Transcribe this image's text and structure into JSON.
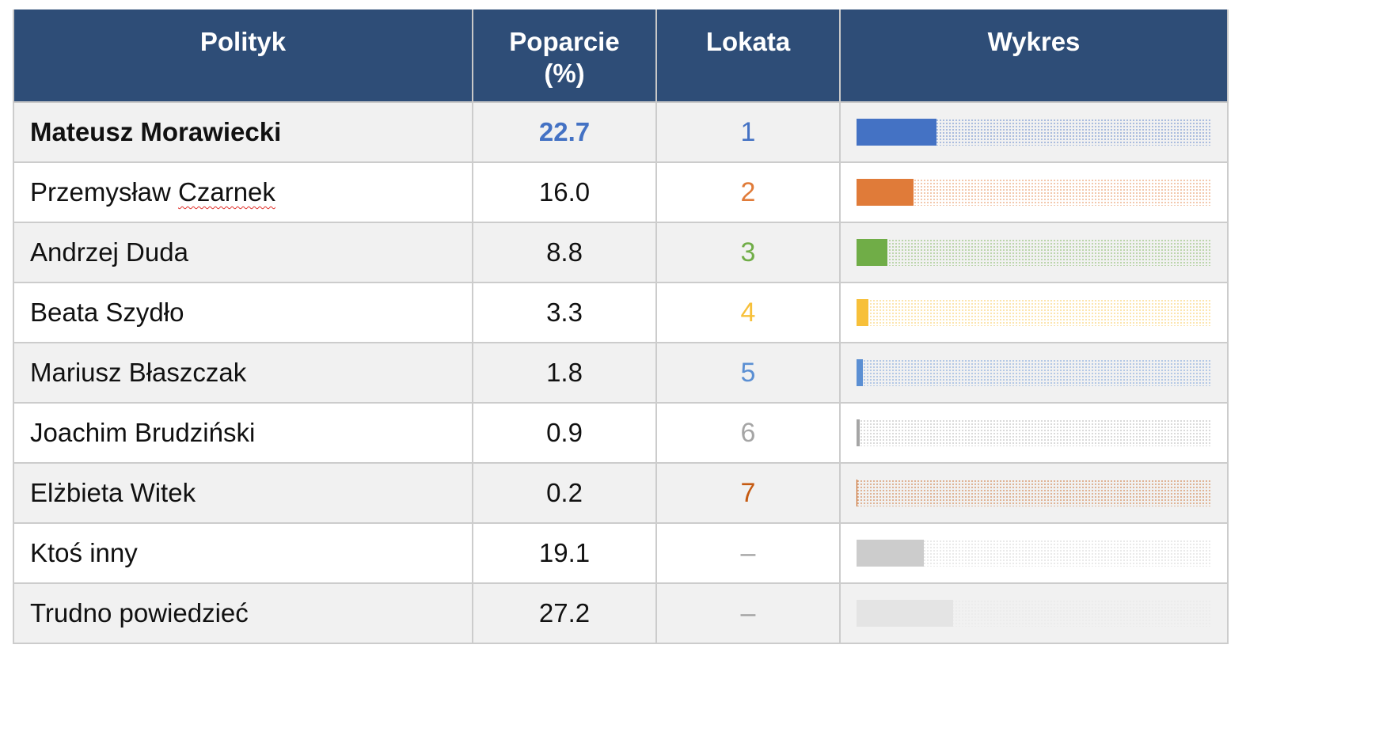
{
  "chart_data": {
    "type": "table",
    "columns": [
      "Polityk",
      "Poparcie (%)",
      "Lokata",
      "Wykres"
    ],
    "header": {
      "name": "Polityk",
      "support_line1": "Poparcie",
      "support_line2": "(%)",
      "rank": "Lokata",
      "chart": "Wykres"
    },
    "bar_max": 100,
    "rows": [
      {
        "name": "Mateusz Morawiecki",
        "support": "22.7",
        "value": 22.7,
        "rank": "1",
        "color": "#4472c4",
        "bold": true
      },
      {
        "name": "Przemysław Czarnek",
        "support": "16.0",
        "value": 16.0,
        "rank": "2",
        "color": "#e07b39",
        "spell": true
      },
      {
        "name": "Andrzej Duda",
        "support": "8.8",
        "value": 8.8,
        "rank": "3",
        "color": "#70ad47"
      },
      {
        "name": "Beata Szydło",
        "support": "3.3",
        "value": 3.3,
        "rank": "4",
        "color": "#f7c03a"
      },
      {
        "name": "Mariusz Błaszczak",
        "support": "1.8",
        "value": 1.8,
        "rank": "5",
        "color": "#5b8fd3"
      },
      {
        "name": "Joachim Brudziński",
        "support": "0.9",
        "value": 0.9,
        "rank": "6",
        "color": "#a5a5a5"
      },
      {
        "name": "Elżbieta Witek",
        "support": "0.2",
        "value": 0.2,
        "rank": "7",
        "color": "#c55a11"
      },
      {
        "name": "Ktoś inny",
        "support": "19.1",
        "value": 19.1,
        "rank": "–",
        "color": "#cccccc"
      },
      {
        "name": "Trudno powiedzieć",
        "support": "27.2",
        "value": 27.2,
        "rank": "–",
        "color": "#e4e4e4"
      }
    ]
  },
  "colors": {
    "header_bg": "#2e4d77",
    "header_text": "#ffffff",
    "accent": "#4472c4",
    "dash": "#a0a0a0"
  }
}
